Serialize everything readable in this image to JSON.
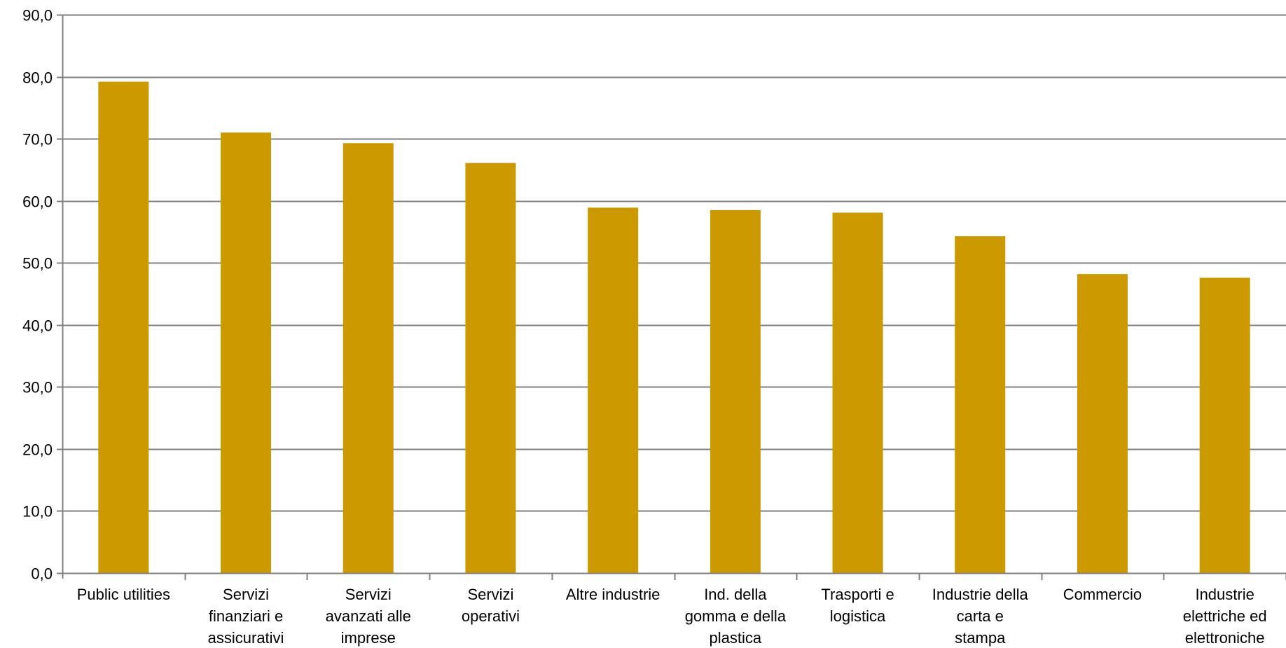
{
  "chart_data": {
    "type": "bar",
    "categories": [
      [
        "Public utilities"
      ],
      [
        "Servizi",
        "finanziari e",
        "assicurativi"
      ],
      [
        "Servizi",
        "avanzati alle",
        "imprese"
      ],
      [
        "Servizi",
        "operativi"
      ],
      [
        "Altre industrie"
      ],
      [
        "Ind. della",
        "gomma e della",
        "plastica"
      ],
      [
        "Trasporti e",
        "logistica"
      ],
      [
        "Industrie della",
        "carta e",
        "stampa"
      ],
      [
        "Commercio"
      ],
      [
        "Industrie",
        "elettriche ed",
        "elettroniche"
      ]
    ],
    "values": [
      79.2,
      71.0,
      69.3,
      66.1,
      58.9,
      58.5,
      58.1,
      54.3,
      48.2,
      47.6
    ],
    "ylim": [
      0,
      90
    ],
    "yticks": [
      "0,0",
      "10,0",
      "20,0",
      "30,0",
      "40,0",
      "50,0",
      "60,0",
      "70,0",
      "80,0",
      "90,0"
    ],
    "grid": true,
    "colors": {
      "bar": "#CC9900",
      "grid": "#808080",
      "axis": "#808080"
    }
  }
}
